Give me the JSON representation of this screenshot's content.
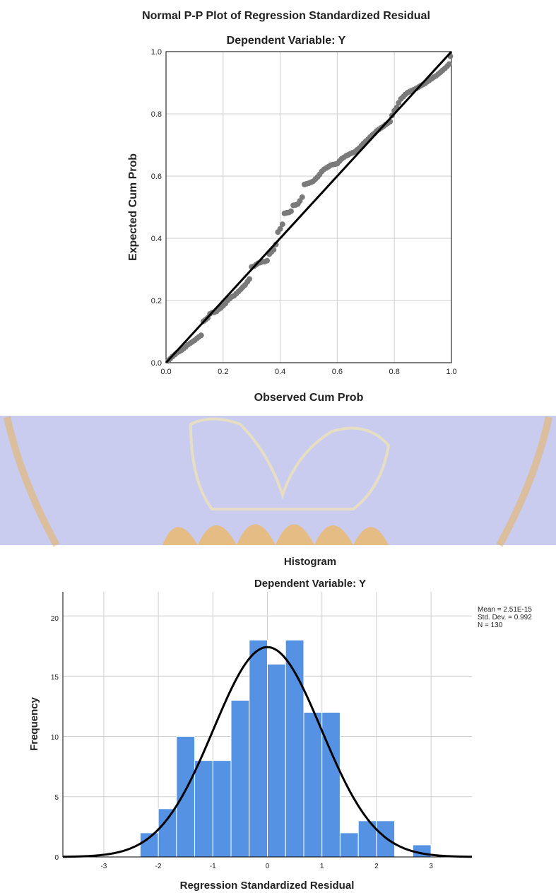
{
  "pp_plot": {
    "title": "Normal P-P Plot of Regression Standardized Residual",
    "subtitle": "Dependent Variable: Y",
    "xlabel": "Observed Cum Prob",
    "ylabel": "Expected Cum Prob",
    "x_ticks": [
      "0.0",
      "0.2",
      "0.4",
      "0.6",
      "0.8",
      "1.0"
    ],
    "y_ticks": [
      "0.0",
      "0.2",
      "0.4",
      "0.6",
      "0.8",
      "1.0"
    ]
  },
  "histogram": {
    "title": "Histogram",
    "subtitle": "Dependent Variable: Y",
    "xlabel": "Regression Standardized Residual",
    "ylabel": "Frequency",
    "x_ticks": [
      "-3",
      "-2",
      "-1",
      "0",
      "1",
      "2",
      "3"
    ],
    "y_ticks": [
      "0",
      "5",
      "10",
      "15",
      "20"
    ],
    "stats_mean": "Mean = 2.51E-15",
    "stats_sd": "Std. Dev. = 0.992",
    "stats_n": "N = 130"
  },
  "colors": {
    "points": "#7a7a7a",
    "bars": "#5592e3",
    "bar_edge": "#ffffff",
    "lines": "#000000",
    "grid": "#cfcfcf",
    "watermark": "#c9ccef",
    "watermark_accent": "#e8b35a"
  },
  "chart_data": [
    {
      "type": "scatter",
      "title": "Normal P-P Plot of Regression Standardized Residual",
      "subtitle": "Dependent Variable: Y",
      "xlabel": "Observed Cum Prob",
      "ylabel": "Expected Cum Prob",
      "xlim": [
        0,
        1
      ],
      "ylim": [
        0,
        1
      ],
      "grid": true,
      "reference_line": {
        "x": [
          0,
          1
        ],
        "y": [
          0,
          1
        ]
      },
      "points": [
        [
          0.008,
          0.006
        ],
        [
          0.015,
          0.013
        ],
        [
          0.023,
          0.02
        ],
        [
          0.031,
          0.026
        ],
        [
          0.038,
          0.032
        ],
        [
          0.046,
          0.036
        ],
        [
          0.054,
          0.04
        ],
        [
          0.062,
          0.046
        ],
        [
          0.069,
          0.051
        ],
        [
          0.077,
          0.058
        ],
        [
          0.085,
          0.063
        ],
        [
          0.092,
          0.067
        ],
        [
          0.1,
          0.072
        ],
        [
          0.108,
          0.078
        ],
        [
          0.115,
          0.083
        ],
        [
          0.123,
          0.088
        ],
        [
          0.131,
          0.133
        ],
        [
          0.138,
          0.138
        ],
        [
          0.146,
          0.144
        ],
        [
          0.154,
          0.157
        ],
        [
          0.162,
          0.161
        ],
        [
          0.169,
          0.162
        ],
        [
          0.177,
          0.165
        ],
        [
          0.185,
          0.172
        ],
        [
          0.192,
          0.176
        ],
        [
          0.2,
          0.183
        ],
        [
          0.208,
          0.19
        ],
        [
          0.215,
          0.199
        ],
        [
          0.223,
          0.206
        ],
        [
          0.231,
          0.212
        ],
        [
          0.238,
          0.215
        ],
        [
          0.246,
          0.222
        ],
        [
          0.254,
          0.229
        ],
        [
          0.262,
          0.236
        ],
        [
          0.269,
          0.243
        ],
        [
          0.277,
          0.25
        ],
        [
          0.285,
          0.26
        ],
        [
          0.292,
          0.269
        ],
        [
          0.3,
          0.308
        ],
        [
          0.308,
          0.31
        ],
        [
          0.315,
          0.315
        ],
        [
          0.323,
          0.32
        ],
        [
          0.331,
          0.322
        ],
        [
          0.338,
          0.325
        ],
        [
          0.346,
          0.325
        ],
        [
          0.354,
          0.328
        ],
        [
          0.362,
          0.349
        ],
        [
          0.369,
          0.356
        ],
        [
          0.377,
          0.363
        ],
        [
          0.385,
          0.38
        ],
        [
          0.392,
          0.42
        ],
        [
          0.4,
          0.43
        ],
        [
          0.408,
          0.445
        ],
        [
          0.415,
          0.48
        ],
        [
          0.423,
          0.482
        ],
        [
          0.431,
          0.483
        ],
        [
          0.438,
          0.487
        ],
        [
          0.446,
          0.506
        ],
        [
          0.454,
          0.507
        ],
        [
          0.462,
          0.51
        ],
        [
          0.469,
          0.52
        ],
        [
          0.477,
          0.532
        ],
        [
          0.485,
          0.573
        ],
        [
          0.492,
          0.575
        ],
        [
          0.5,
          0.577
        ],
        [
          0.508,
          0.58
        ],
        [
          0.515,
          0.583
        ],
        [
          0.523,
          0.59
        ],
        [
          0.531,
          0.597
        ],
        [
          0.538,
          0.605
        ],
        [
          0.546,
          0.615
        ],
        [
          0.554,
          0.622
        ],
        [
          0.562,
          0.626
        ],
        [
          0.569,
          0.63
        ],
        [
          0.577,
          0.635
        ],
        [
          0.585,
          0.637
        ],
        [
          0.592,
          0.638
        ],
        [
          0.6,
          0.64
        ],
        [
          0.608,
          0.648
        ],
        [
          0.615,
          0.655
        ],
        [
          0.623,
          0.66
        ],
        [
          0.631,
          0.665
        ],
        [
          0.638,
          0.668
        ],
        [
          0.646,
          0.672
        ],
        [
          0.654,
          0.675
        ],
        [
          0.662,
          0.678
        ],
        [
          0.669,
          0.684
        ],
        [
          0.677,
          0.69
        ],
        [
          0.685,
          0.698
        ],
        [
          0.692,
          0.705
        ],
        [
          0.7,
          0.712
        ],
        [
          0.708,
          0.718
        ],
        [
          0.715,
          0.725
        ],
        [
          0.723,
          0.732
        ],
        [
          0.731,
          0.738
        ],
        [
          0.738,
          0.745
        ],
        [
          0.746,
          0.75
        ],
        [
          0.754,
          0.755
        ],
        [
          0.762,
          0.76
        ],
        [
          0.769,
          0.765
        ],
        [
          0.777,
          0.77
        ],
        [
          0.785,
          0.775
        ],
        [
          0.792,
          0.795
        ],
        [
          0.8,
          0.81
        ],
        [
          0.808,
          0.82
        ],
        [
          0.815,
          0.835
        ],
        [
          0.823,
          0.848
        ],
        [
          0.831,
          0.855
        ],
        [
          0.838,
          0.862
        ],
        [
          0.846,
          0.868
        ],
        [
          0.854,
          0.872
        ],
        [
          0.862,
          0.875
        ],
        [
          0.869,
          0.878
        ],
        [
          0.877,
          0.882
        ],
        [
          0.885,
          0.886
        ],
        [
          0.892,
          0.89
        ],
        [
          0.9,
          0.894
        ],
        [
          0.908,
          0.898
        ],
        [
          0.915,
          0.903
        ],
        [
          0.923,
          0.908
        ],
        [
          0.931,
          0.913
        ],
        [
          0.938,
          0.918
        ],
        [
          0.946,
          0.922
        ],
        [
          0.954,
          0.928
        ],
        [
          0.962,
          0.934
        ],
        [
          0.969,
          0.94
        ],
        [
          0.977,
          0.946
        ],
        [
          0.985,
          0.953
        ],
        [
          0.992,
          0.96
        ],
        [
          0.996,
          0.985
        ]
      ]
    },
    {
      "type": "bar",
      "title": "Histogram",
      "subtitle": "Dependent Variable: Y",
      "xlabel": "Regression Standardized Residual",
      "ylabel": "Frequency",
      "xlim": [
        -3.75,
        3.75
      ],
      "ylim": [
        0,
        22
      ],
      "grid": true,
      "bin_width": 0.333,
      "bins": [
        {
          "start": -2.333,
          "end": -2.0,
          "count": 2
        },
        {
          "start": -2.0,
          "end": -1.667,
          "count": 4
        },
        {
          "start": -1.667,
          "end": -1.333,
          "count": 10
        },
        {
          "start": -1.333,
          "end": -1.0,
          "count": 8
        },
        {
          "start": -1.0,
          "end": -0.667,
          "count": 8
        },
        {
          "start": -0.667,
          "end": -0.333,
          "count": 13
        },
        {
          "start": -0.333,
          "end": 0.0,
          "count": 18
        },
        {
          "start": 0.0,
          "end": 0.333,
          "count": 16
        },
        {
          "start": 0.333,
          "end": 0.667,
          "count": 18
        },
        {
          "start": 0.667,
          "end": 1.0,
          "count": 12
        },
        {
          "start": 1.0,
          "end": 1.333,
          "count": 12
        },
        {
          "start": 1.333,
          "end": 1.667,
          "count": 2
        },
        {
          "start": 1.667,
          "end": 2.0,
          "count": 3
        },
        {
          "start": 2.0,
          "end": 2.333,
          "count": 3
        },
        {
          "start": 2.333,
          "end": 2.667,
          "count": 0
        },
        {
          "start": 2.667,
          "end": 3.0,
          "count": 1
        }
      ],
      "normal_curve": {
        "mean": 0.0,
        "sd": 0.992,
        "n": 130
      },
      "stats": [
        "Mean = 2.51E-15",
        "Std. Dev. = 0.992",
        "N = 130"
      ]
    }
  ]
}
